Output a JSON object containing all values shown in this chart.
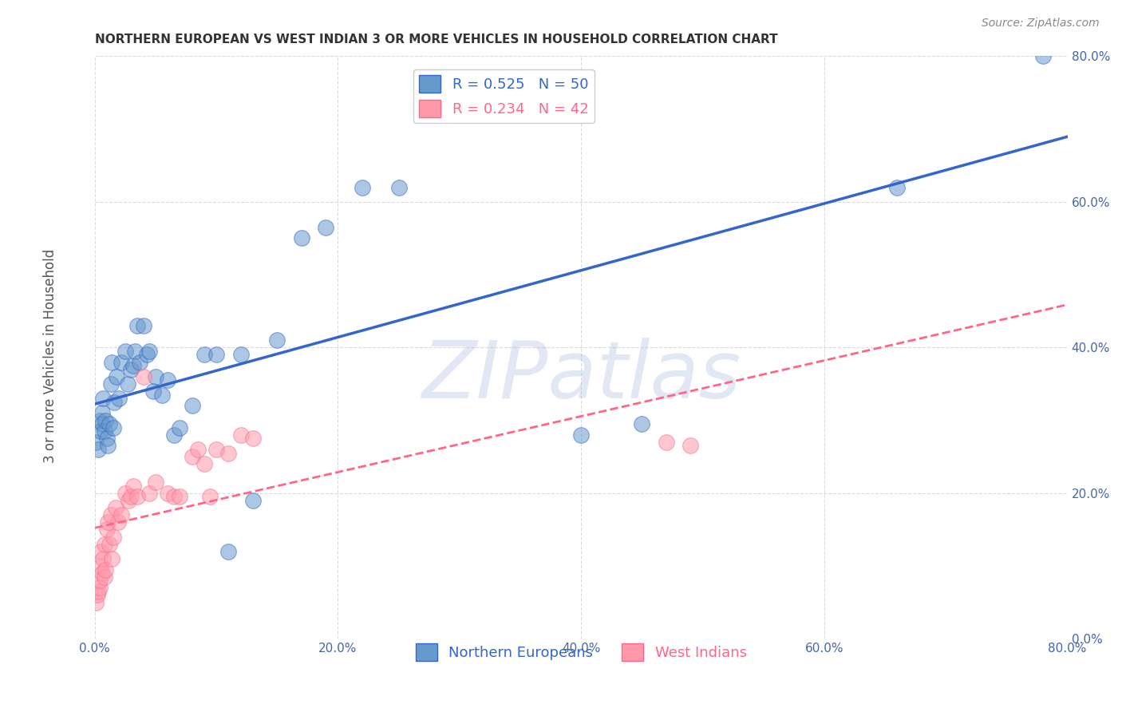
{
  "title": "NORTHERN EUROPEAN VS WEST INDIAN 3 OR MORE VEHICLES IN HOUSEHOLD CORRELATION CHART",
  "source": "Source: ZipAtlas.com",
  "ylabel": "3 or more Vehicles in Household",
  "blue_R": 0.525,
  "blue_N": 50,
  "pink_R": 0.234,
  "pink_N": 42,
  "blue_color": "#6699CC",
  "pink_color": "#FF99AA",
  "blue_line_color": "#3366CC",
  "pink_line_color": "#FF6688",
  "axis_label_color": "#4466AA",
  "title_color": "#333333",
  "background_color": "#FFFFFF",
  "xlim": [
    0,
    0.8
  ],
  "ylim": [
    0,
    0.8
  ],
  "xticks": [
    0.0,
    0.2,
    0.4,
    0.6,
    0.8
  ],
  "yticks": [
    0.0,
    0.2,
    0.4,
    0.6,
    0.8
  ],
  "blue_x": [
    0.001,
    0.003,
    0.004,
    0.005,
    0.006,
    0.006,
    0.007,
    0.008,
    0.009,
    0.01,
    0.011,
    0.012,
    0.013,
    0.014,
    0.015,
    0.016,
    0.018,
    0.02,
    0.022,
    0.025,
    0.027,
    0.03,
    0.032,
    0.033,
    0.035,
    0.037,
    0.04,
    0.043,
    0.045,
    0.048,
    0.05,
    0.055,
    0.06,
    0.065,
    0.07,
    0.08,
    0.09,
    0.1,
    0.11,
    0.12,
    0.13,
    0.15,
    0.17,
    0.19,
    0.22,
    0.25,
    0.4,
    0.45,
    0.66,
    0.78
  ],
  "blue_y": [
    0.27,
    0.26,
    0.3,
    0.285,
    0.31,
    0.295,
    0.33,
    0.285,
    0.3,
    0.275,
    0.265,
    0.295,
    0.35,
    0.38,
    0.29,
    0.325,
    0.36,
    0.33,
    0.38,
    0.395,
    0.35,
    0.37,
    0.375,
    0.395,
    0.43,
    0.38,
    0.43,
    0.39,
    0.395,
    0.34,
    0.36,
    0.335,
    0.355,
    0.28,
    0.29,
    0.32,
    0.39,
    0.39,
    0.12,
    0.39,
    0.19,
    0.41,
    0.55,
    0.565,
    0.62,
    0.62,
    0.28,
    0.295,
    0.62,
    0.8
  ],
  "pink_x": [
    0.001,
    0.002,
    0.003,
    0.004,
    0.004,
    0.005,
    0.005,
    0.006,
    0.007,
    0.008,
    0.008,
    0.009,
    0.01,
    0.011,
    0.012,
    0.013,
    0.014,
    0.015,
    0.017,
    0.019,
    0.022,
    0.025,
    0.028,
    0.03,
    0.032,
    0.035,
    0.04,
    0.045,
    0.05,
    0.06,
    0.065,
    0.07,
    0.08,
    0.085,
    0.09,
    0.095,
    0.1,
    0.11,
    0.12,
    0.13,
    0.47,
    0.49
  ],
  "pink_y": [
    0.05,
    0.06,
    0.065,
    0.07,
    0.08,
    0.1,
    0.12,
    0.09,
    0.11,
    0.085,
    0.13,
    0.095,
    0.15,
    0.16,
    0.13,
    0.17,
    0.11,
    0.14,
    0.18,
    0.16,
    0.17,
    0.2,
    0.19,
    0.195,
    0.21,
    0.195,
    0.36,
    0.2,
    0.215,
    0.2,
    0.195,
    0.195,
    0.25,
    0.26,
    0.24,
    0.195,
    0.26,
    0.255,
    0.28,
    0.275,
    0.27,
    0.265
  ]
}
